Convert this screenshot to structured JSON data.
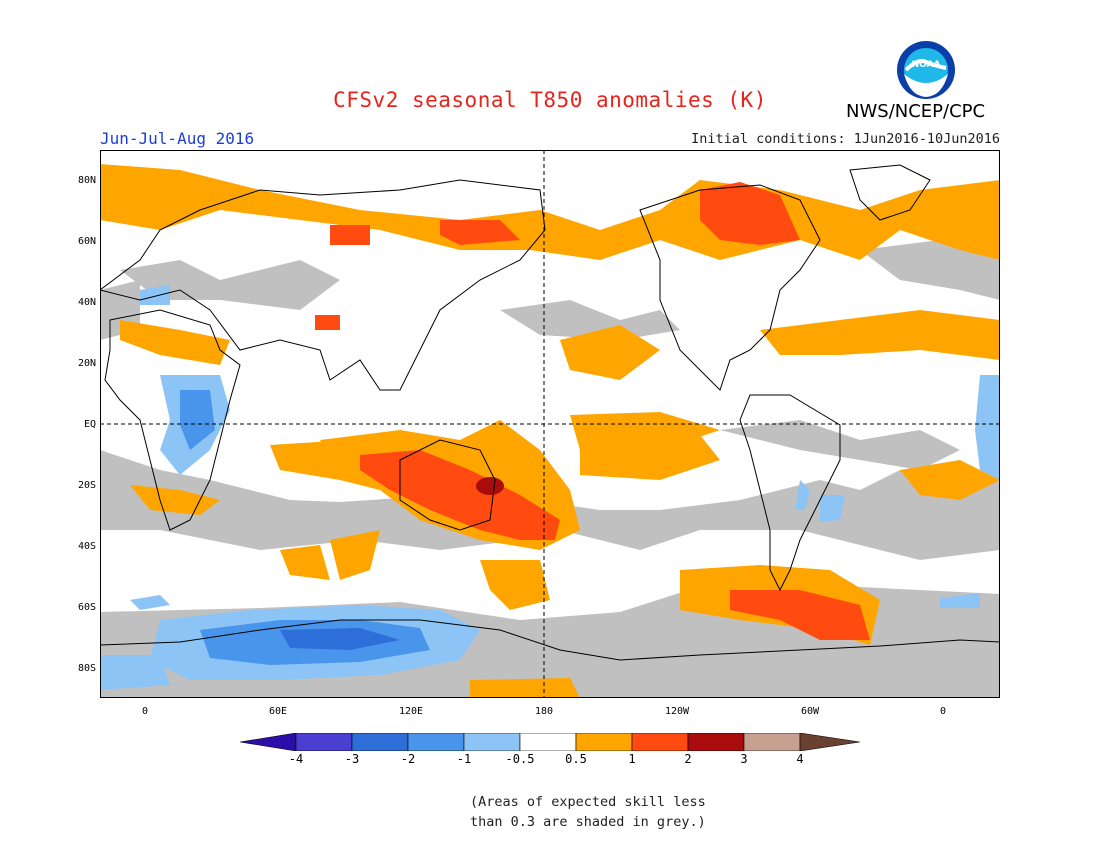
{
  "header": {
    "title": "CFSv2 seasonal T850 anomalies (K)",
    "organization": "NWS/NCEP/CPC",
    "logo_text": "NOAA",
    "period": "Jun-Jul-Aug 2016",
    "initial_conditions": "Initial conditions: 1Jun2016-10Jun2016"
  },
  "axes": {
    "lat_labels": [
      "80N",
      "60N",
      "40N",
      "20N",
      "EQ",
      "20S",
      "40S",
      "60S",
      "80S"
    ],
    "lon_labels": [
      "0",
      "60E",
      "120E",
      "180",
      "120W",
      "60W",
      "0"
    ]
  },
  "colorbar": {
    "labels": [
      "-4",
      "-3",
      "-2",
      "-1",
      "-0.5",
      "0.5",
      "1",
      "2",
      "3",
      "4"
    ],
    "colors": [
      "#2a10a8",
      "#4a3fd0",
      "#2e6ed8",
      "#4a95ec",
      "#8cc4f6",
      "#ffffff",
      "#ffa500",
      "#ff4a10",
      "#a80c0c",
      "#c8a090",
      "#6a4030"
    ]
  },
  "note": {
    "line1": "(Areas of expected skill less",
    "line2": "than 0.3 are shaded in grey.)"
  }
}
